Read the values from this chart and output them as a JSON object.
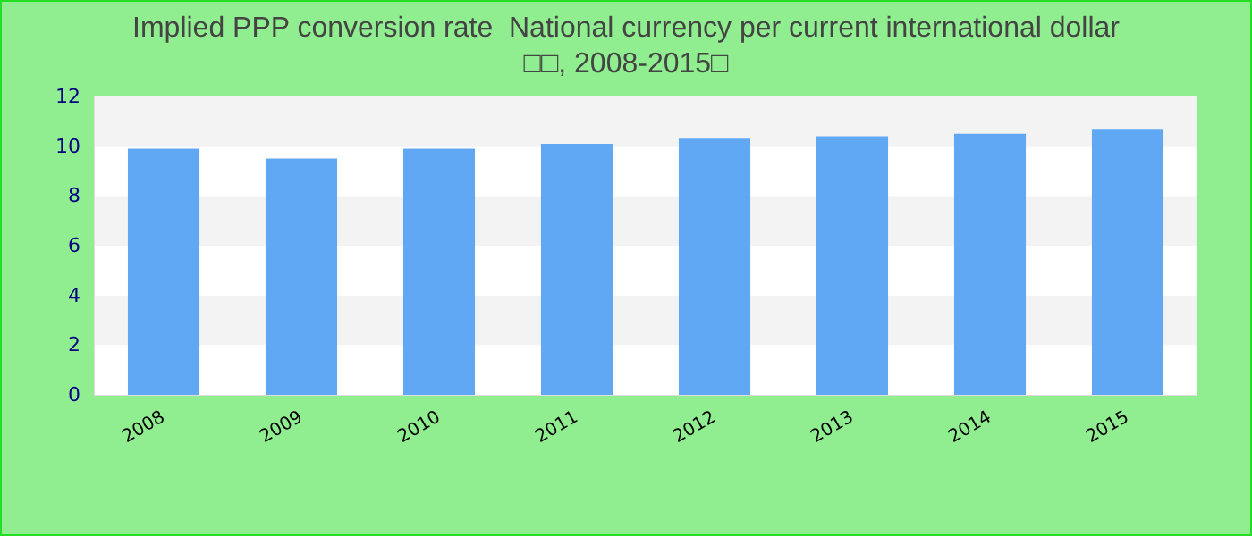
{
  "chart_data": {
    "type": "bar",
    "title": "Implied PPP conversion rate  National currency per current international dollar",
    "subtitle": "□□, 2008-2015□",
    "categories": [
      "2008",
      "2009",
      "2010",
      "2011",
      "2012",
      "2013",
      "2014",
      "2015"
    ],
    "values": [
      9.9,
      9.5,
      9.9,
      10.1,
      10.3,
      10.4,
      10.5,
      10.7
    ],
    "color": "#60a8f4",
    "ylim": [
      0,
      12
    ],
    "yticks": [
      0,
      2,
      4,
      6,
      8,
      10,
      12
    ]
  }
}
